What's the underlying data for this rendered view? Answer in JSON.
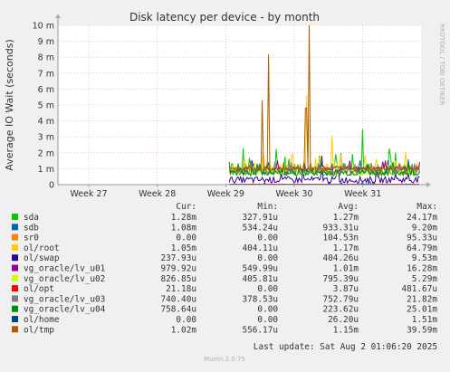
{
  "chart_data": {
    "type": "line",
    "title": "Disk latency per device - by month",
    "ylabel": "Average IO Wait (seconds)",
    "watermark": "RRDTOOL / TOBI OETIKER",
    "y_ticks": [
      {
        "value": 0,
        "label": "0"
      },
      {
        "value": 0.001,
        "label": "1 m"
      },
      {
        "value": 0.002,
        "label": "2 m"
      },
      {
        "value": 0.003,
        "label": "3 m"
      },
      {
        "value": 0.004,
        "label": "4 m"
      },
      {
        "value": 0.005,
        "label": "5 m"
      },
      {
        "value": 0.006,
        "label": "6 m"
      },
      {
        "value": 0.007,
        "label": "7 m"
      },
      {
        "value": 0.008,
        "label": "8 m"
      },
      {
        "value": 0.009,
        "label": "9 m"
      },
      {
        "value": 0.01,
        "label": "10 m"
      }
    ],
    "ylim": [
      0,
      0.01
    ],
    "x_ticks": [
      {
        "value": 27,
        "label": "Week 27"
      },
      {
        "value": 28,
        "label": "Week 28"
      },
      {
        "value": 29,
        "label": "Week 29"
      },
      {
        "value": 30,
        "label": "Week 30"
      },
      {
        "value": 31,
        "label": "Week 31"
      }
    ],
    "xlim": [
      26.55,
      31.85
    ],
    "data_start": 29.05,
    "grid": true,
    "legend_header": {
      "cur": "Cur:",
      "min": "Min:",
      "avg": "Avg:",
      "max": "Max:"
    },
    "series": [
      {
        "name": "sda",
        "color": "#00cc00",
        "base": 0.00095,
        "jitter": 0.0004,
        "cur": "1.28m",
        "min": "327.91u",
        "avg": "1.27m",
        "max": "24.17m",
        "spikes": [
          [
            31.0,
            0.0035
          ]
        ]
      },
      {
        "name": "sdb",
        "color": "#0066b3",
        "base": 0.0009,
        "jitter": 0.0002,
        "cur": "1.08m",
        "min": "534.24u",
        "avg": "933.31u",
        "max": "9.20m",
        "spikes": []
      },
      {
        "name": "sr0",
        "color": "#ff8000",
        "base": 0.0,
        "jitter": 0.0,
        "cur": "0.00",
        "min": "0.00",
        "avg": "104.53n",
        "max": "95.33u",
        "spikes": []
      },
      {
        "name": "ol/root",
        "color": "#ffcc00",
        "base": 0.00105,
        "jitter": 0.0003,
        "cur": "1.05m",
        "min": "404.11u",
        "avg": "1.17m",
        "max": "64.79m",
        "spikes": [
          [
            30.18,
            0.0056
          ],
          [
            30.55,
            0.0031
          ]
        ]
      },
      {
        "name": "ol/swap",
        "color": "#330099",
        "base": 0.0003,
        "jitter": 0.0002,
        "cur": "237.93u",
        "min": "0.00",
        "avg": "404.26u",
        "max": "9.53m",
        "spikes": [
          [
            30.4,
            0.0018
          ]
        ]
      },
      {
        "name": "vg_oracle/lv_u01",
        "color": "#990099",
        "base": 0.001,
        "jitter": 0.00015,
        "cur": "979.92u",
        "min": "549.99u",
        "avg": "1.01m",
        "max": "16.28m",
        "spikes": []
      },
      {
        "name": "vg_oracle/lv_u02",
        "color": "#ccff00",
        "base": 0.0008,
        "jitter": 0.0002,
        "cur": "826.85u",
        "min": "405.81u",
        "avg": "795.39u",
        "max": "5.29m",
        "spikes": []
      },
      {
        "name": "ol/opt",
        "color": "#ff0000",
        "base": 0.0,
        "jitter": 0.0,
        "cur": "21.18u",
        "min": "0.00",
        "avg": "3.87u",
        "max": "481.67u",
        "spikes": []
      },
      {
        "name": "vg_oracle/lv_u03",
        "color": "#808080",
        "base": 0.0008,
        "jitter": 0.0002,
        "cur": "740.40u",
        "min": "378.53u",
        "avg": "752.79u",
        "max": "21.82m",
        "spikes": []
      },
      {
        "name": "vg_oracle/lv_u04",
        "color": "#008f00",
        "base": 0.00075,
        "jitter": 0.0002,
        "cur": "758.64u",
        "min": "0.00",
        "avg": "223.62u",
        "max": "25.01m",
        "spikes": []
      },
      {
        "name": "ol/home",
        "color": "#00487d",
        "base": 0.0,
        "jitter": 5e-05,
        "cur": "0.00",
        "min": "0.00",
        "avg": "26.20u",
        "max": "1.51m",
        "spikes": []
      },
      {
        "name": "ol/tmp",
        "color": "#b35a00",
        "base": 0.001,
        "jitter": 0.0001,
        "cur": "1.02m",
        "min": "556.17u",
        "avg": "1.15m",
        "max": "39.59m",
        "spikes": [
          [
            29.53,
            0.0053
          ],
          [
            29.63,
            0.0082
          ],
          [
            30.17,
            0.0048
          ],
          [
            30.22,
            0.01
          ]
        ]
      }
    ],
    "last_update": "Last update: Sat Aug  2 01:06:20 2025",
    "footer": "Munin 2.0.75"
  }
}
